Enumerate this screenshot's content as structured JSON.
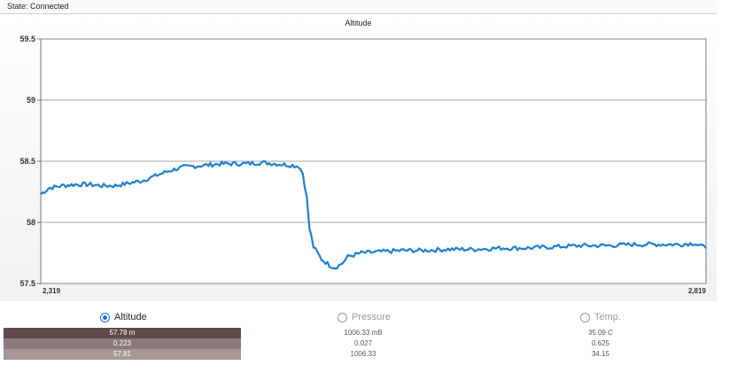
{
  "status": {
    "text": "State: Connected"
  },
  "chart_data": {
    "type": "line",
    "title": "Altitude",
    "ylim": [
      57.5,
      59.5
    ],
    "y_ticks": [
      "59.5",
      "59",
      "58.5",
      "58",
      "57.5"
    ],
    "y_tick_values": [
      59.5,
      59.0,
      58.5,
      58.0,
      57.5
    ],
    "xlim": [
      2319,
      2819
    ],
    "x_tick_labels": [
      "2,319",
      "2,819"
    ],
    "grid": true,
    "series": [
      {
        "color": "#1f7fd0",
        "points": [
          [
            2319,
            58.23
          ],
          [
            2325,
            58.28
          ],
          [
            2335,
            58.3
          ],
          [
            2345,
            58.31
          ],
          [
            2355,
            58.31
          ],
          [
            2365,
            58.3
          ],
          [
            2375,
            58.3
          ],
          [
            2385,
            58.32
          ],
          [
            2395,
            58.34
          ],
          [
            2405,
            58.38
          ],
          [
            2415,
            58.42
          ],
          [
            2425,
            58.45
          ],
          [
            2435,
            58.46
          ],
          [
            2445,
            58.47
          ],
          [
            2455,
            58.48
          ],
          [
            2465,
            58.48
          ],
          [
            2475,
            58.48
          ],
          [
            2485,
            58.49
          ],
          [
            2495,
            58.48
          ],
          [
            2505,
            58.47
          ],
          [
            2513,
            58.46
          ],
          [
            2516,
            58.4
          ],
          [
            2519,
            58.2
          ],
          [
            2521,
            57.95
          ],
          [
            2524,
            57.8
          ],
          [
            2530,
            57.7
          ],
          [
            2536,
            57.65
          ],
          [
            2540,
            57.63
          ],
          [
            2545,
            57.66
          ],
          [
            2550,
            57.72
          ],
          [
            2560,
            57.75
          ],
          [
            2575,
            57.76
          ],
          [
            2590,
            57.77
          ],
          [
            2605,
            57.77
          ],
          [
            2625,
            57.78
          ],
          [
            2645,
            57.78
          ],
          [
            2665,
            57.79
          ],
          [
            2685,
            57.79
          ],
          [
            2705,
            57.8
          ],
          [
            2725,
            57.81
          ],
          [
            2745,
            57.81
          ],
          [
            2765,
            57.82
          ],
          [
            2785,
            57.82
          ],
          [
            2800,
            57.82
          ],
          [
            2810,
            57.83
          ],
          [
            2819,
            57.79
          ]
        ]
      }
    ]
  },
  "legend": {
    "items": [
      {
        "label": "Altitude",
        "selected": true
      },
      {
        "label": "Pressure",
        "selected": false
      },
      {
        "label": "Temp.",
        "selected": false
      }
    ]
  },
  "stats": {
    "altitude": [
      "57.78 m",
      "0.223",
      "57.81"
    ],
    "pressure": [
      "1006.33 mB",
      "0.027",
      "1006.33"
    ],
    "temp": [
      "35.09 C",
      "0.625",
      "34.15"
    ]
  }
}
